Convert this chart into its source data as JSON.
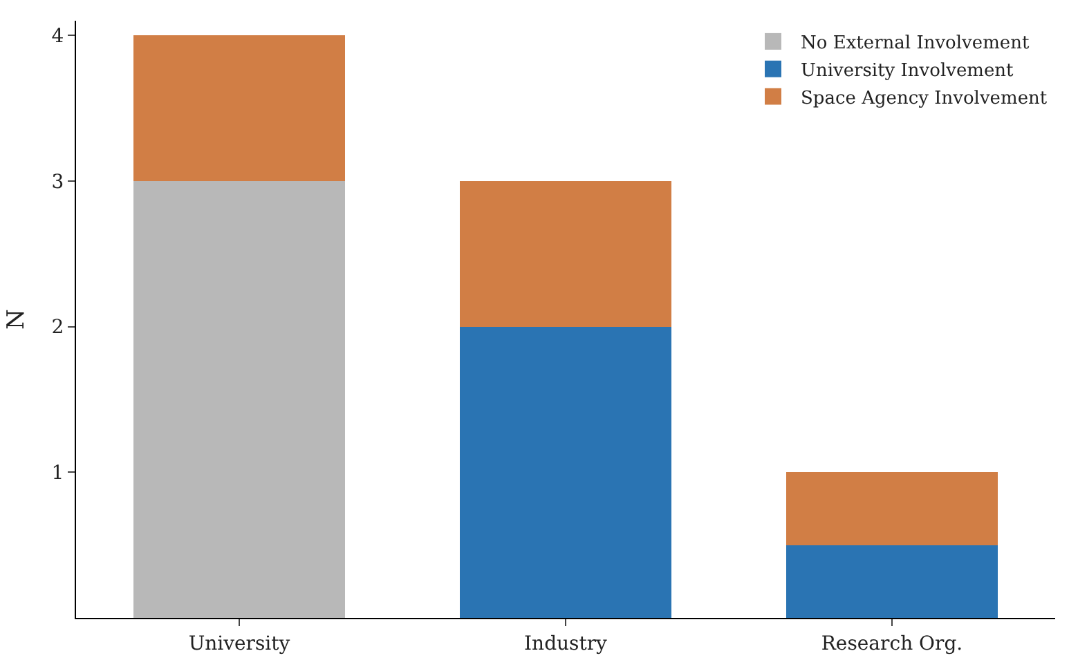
{
  "chart_data": {
    "type": "bar",
    "stacked": true,
    "ylabel": "N",
    "categories": [
      "University",
      "Industry",
      "Research Org."
    ],
    "series": [
      {
        "name": "No External Involvement",
        "color": "#b8b8b8",
        "values": [
          3,
          null,
          null
        ]
      },
      {
        "name": "University Involvement",
        "color": "#2a74b3",
        "values": [
          null,
          2,
          0.5
        ]
      },
      {
        "name": "Space Agency Involvement",
        "color": "#d17e45",
        "values": [
          1,
          1,
          0.5
        ]
      }
    ],
    "ylim": [
      0,
      4.1
    ],
    "yticks": [
      1,
      2,
      3,
      4
    ],
    "legend": "top right"
  }
}
